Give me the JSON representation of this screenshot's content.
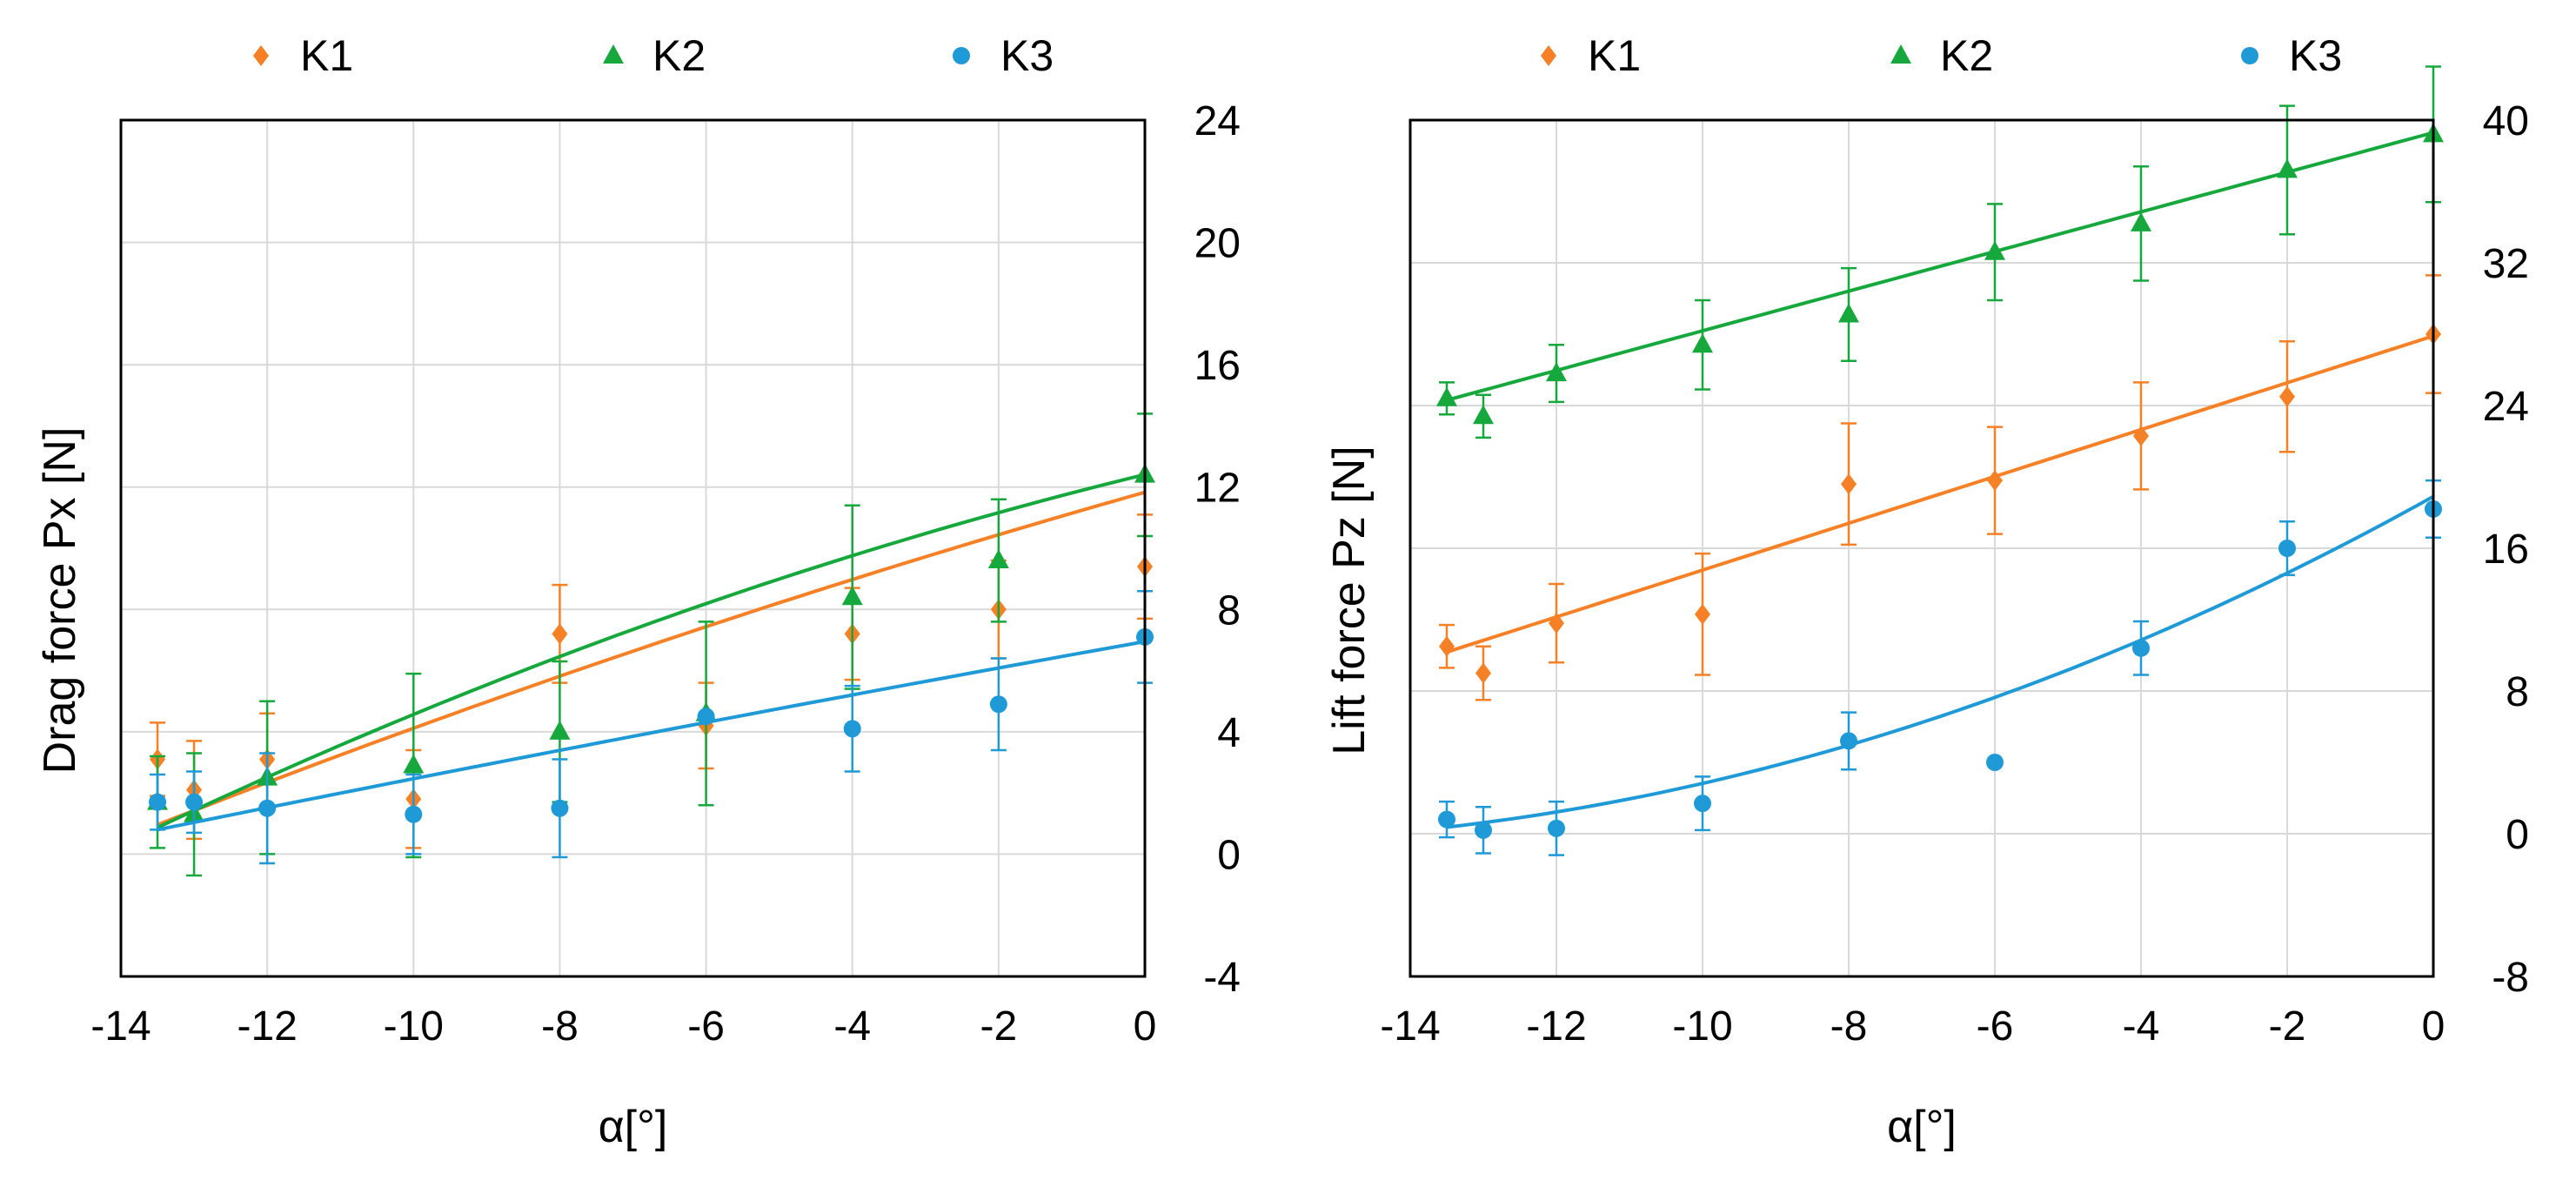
{
  "colors": {
    "K1": "#f58025",
    "K2": "#16a83c",
    "K3": "#1f9ad6",
    "grid": "#d9d9d9",
    "axis": "#000000"
  },
  "chart_data": [
    {
      "type": "scatter",
      "title": "",
      "xlabel": "α[°]",
      "ylabel": "Drag force Px [N]",
      "xlim": [
        -14,
        0
      ],
      "ylim": [
        -4,
        24
      ],
      "xticks": [
        "-14",
        "-12",
        "-10",
        "-8",
        "-6",
        "-4",
        "-2",
        "0"
      ],
      "yticks": [
        "-4",
        "0",
        "4",
        "8",
        "12",
        "16",
        "20",
        "24"
      ],
      "legend": [
        "K1",
        "K2",
        "K3"
      ],
      "legend_position": "top",
      "series": [
        {
          "name": "K1",
          "marker": "diamond",
          "x": [
            -13.5,
            -13,
            -12,
            -10,
            -8,
            -6,
            -4,
            -2,
            0
          ],
          "y": [
            3.1,
            2.1,
            3.1,
            1.8,
            7.2,
            4.2,
            7.2,
            8.0,
            9.4
          ],
          "err": [
            1.2,
            1.6,
            1.5,
            1.6,
            1.6,
            1.4,
            1.5,
            1.6,
            1.7
          ],
          "fit": [
            -0.0097,
            0.6743,
            11.83
          ]
        },
        {
          "name": "K2",
          "marker": "triangle",
          "x": [
            -13.5,
            -13,
            -12,
            -10,
            -8,
            -6,
            -4,
            -2,
            0
          ],
          "y": [
            1.7,
            1.3,
            2.5,
            2.9,
            4.0,
            4.6,
            8.4,
            9.6,
            12.4
          ],
          "err": [
            1.5,
            2.0,
            2.5,
            3.0,
            2.3,
            3.0,
            3.0,
            2.0,
            2.0
          ],
          "fit": [
            -0.0202,
            0.5823,
            12.41
          ]
        },
        {
          "name": "K3",
          "marker": "circle",
          "x": [
            -13.5,
            -13,
            -12,
            -10,
            -8,
            -6,
            -4,
            -2,
            0
          ],
          "y": [
            1.7,
            1.7,
            1.5,
            1.3,
            1.5,
            4.5,
            4.1,
            4.9,
            7.1
          ],
          "err": [
            0.9,
            1.0,
            1.8,
            1.3,
            1.6,
            0.0,
            1.4,
            1.5,
            1.5
          ],
          "fit": [
            -0.002,
            0.4287,
            6.95
          ]
        }
      ]
    },
    {
      "type": "scatter",
      "title": "",
      "xlabel": "α[°]",
      "ylabel": "Lift force Pz [N]",
      "xlim": [
        -14,
        0
      ],
      "ylim": [
        -8,
        40
      ],
      "xticks": [
        "-14",
        "-12",
        "-10",
        "-8",
        "-6",
        "-4",
        "-2",
        "0"
      ],
      "yticks": [
        "-8",
        "0",
        "8",
        "16",
        "24",
        "32",
        "40"
      ],
      "legend": [
        "K1",
        "K2",
        "K3"
      ],
      "legend_position": "top",
      "series": [
        {
          "name": "K1",
          "marker": "diamond",
          "x": [
            -13.5,
            -13,
            -12,
            -10,
            -8,
            -6,
            -4,
            -2,
            0
          ],
          "y": [
            10.5,
            9.0,
            11.8,
            12.3,
            19.6,
            19.8,
            22.3,
            24.5,
            28.0
          ],
          "err": [
            1.2,
            1.5,
            2.2,
            3.4,
            3.4,
            3.0,
            3.0,
            3.1,
            3.3
          ],
          "fit": [
            0.0,
            1.3125,
            27.9
          ]
        },
        {
          "name": "K2",
          "marker": "triangle",
          "x": [
            -13.5,
            -13,
            -12,
            -10,
            -8,
            -6,
            -4,
            -2,
            0
          ],
          "y": [
            24.4,
            23.4,
            25.8,
            27.4,
            29.1,
            32.6,
            34.2,
            37.2,
            39.2
          ],
          "err": [
            0.9,
            1.2,
            1.6,
            2.5,
            2.6,
            2.7,
            3.2,
            3.6,
            3.8
          ],
          "fit": [
            0.0,
            1.1111,
            39.3
          ]
        },
        {
          "name": "K3",
          "marker": "circle",
          "x": [
            -13.5,
            -13,
            -12,
            -10,
            -8,
            -6,
            -4,
            -2,
            0
          ],
          "y": [
            0.8,
            0.2,
            0.3,
            1.7,
            5.2,
            4.0,
            10.4,
            16.0,
            18.2
          ],
          "err": [
            1.0,
            1.3,
            1.5,
            1.5,
            1.6,
            0.0,
            1.5,
            1.5,
            1.6
          ],
          "fit": [
            0.0672,
            2.28,
            18.9
          ]
        }
      ]
    }
  ]
}
